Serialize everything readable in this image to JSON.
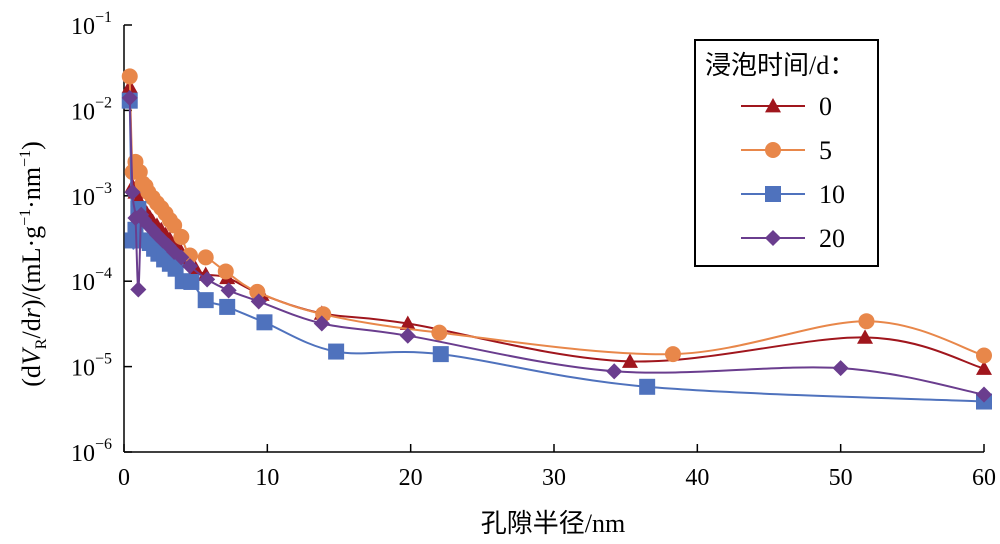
{
  "chart_data": {
    "type": "line",
    "xlabel": "孔隙半径/nm",
    "ylabel": "(dV_R/dr)/(mL·g⁻¹·nm⁻¹)",
    "xlim": [
      0,
      60
    ],
    "ylim": [
      1e-06,
      0.1
    ],
    "y_scale": "log",
    "grid": false,
    "legend_title": "浸泡时间/d：",
    "legend_position": "top-right",
    "x_ticks": [
      "0",
      "10",
      "20",
      "30",
      "40",
      "50",
      "60"
    ],
    "y_ticks": [
      {
        "base": "10",
        "exp": "−1"
      },
      {
        "base": "10",
        "exp": "−2"
      },
      {
        "base": "10",
        "exp": "−3"
      },
      {
        "base": "10",
        "exp": "−4"
      },
      {
        "base": "10",
        "exp": "−5"
      },
      {
        "base": "10",
        "exp": "−6"
      }
    ],
    "series": [
      {
        "name": "0",
        "color": "#a0161d",
        "marker": "triangle",
        "points": [
          [
            0.4,
            0.019
          ],
          [
            0.6,
            0.0013
          ],
          [
            0.8,
            0.0011
          ],
          [
            1.0,
            0.0009
          ],
          [
            1.2,
            0.0008
          ],
          [
            1.4,
            0.0007
          ],
          [
            1.6,
            0.00062
          ],
          [
            1.8,
            0.00056
          ],
          [
            2.0,
            0.0005
          ],
          [
            2.3,
            0.00045
          ],
          [
            2.6,
            0.0004
          ],
          [
            2.9,
            0.00035
          ],
          [
            3.2,
            0.00031
          ],
          [
            3.6,
            0.00027
          ],
          [
            4.0,
            0.00022
          ],
          [
            4.5,
            0.00017
          ],
          [
            5.0,
            0.00014
          ],
          [
            5.7,
            0.00012
          ],
          [
            7.2,
            0.00011
          ],
          [
            9.6,
            7e-05
          ],
          [
            13.8,
            4.2e-05
          ],
          [
            19.8,
            3.2e-05
          ],
          [
            35.3,
            1.15e-05
          ],
          [
            51.7,
            2.2e-05
          ],
          [
            60.0,
            9.5e-06
          ]
        ]
      },
      {
        "name": "5",
        "color": "#e8874a",
        "marker": "circle",
        "points": [
          [
            0.4,
            0.025
          ],
          [
            0.6,
            0.0019
          ],
          [
            0.8,
            0.0025
          ],
          [
            1.1,
            0.0019
          ],
          [
            1.3,
            0.0014
          ],
          [
            1.5,
            0.0013
          ],
          [
            1.7,
            0.0011
          ],
          [
            2.0,
            0.00095
          ],
          [
            2.3,
            0.00082
          ],
          [
            2.6,
            0.00072
          ],
          [
            2.9,
            0.00062
          ],
          [
            3.2,
            0.00052
          ],
          [
            3.5,
            0.00045
          ],
          [
            4.0,
            0.00033
          ],
          [
            4.6,
            0.0002
          ],
          [
            5.7,
            0.00019
          ],
          [
            7.1,
            0.00013
          ],
          [
            9.3,
            7.5e-05
          ],
          [
            13.9,
            4.1e-05
          ],
          [
            22.0,
            2.5e-05
          ],
          [
            38.3,
            1.4e-05
          ],
          [
            51.8,
            3.4e-05
          ],
          [
            60.0,
            1.35e-05
          ]
        ]
      },
      {
        "name": "10",
        "color": "#4f72bd",
        "marker": "square",
        "points": [
          [
            0.4,
            0.013
          ],
          [
            0.6,
            0.0003
          ],
          [
            0.8,
            0.0004
          ],
          [
            1.0,
            0.0007
          ],
          [
            1.2,
            0.0003
          ],
          [
            1.5,
            0.0003
          ],
          [
            1.8,
            0.00028
          ],
          [
            2.1,
            0.00024
          ],
          [
            2.4,
            0.00021
          ],
          [
            2.8,
            0.00018
          ],
          [
            3.2,
            0.00016
          ],
          [
            3.6,
            0.00014
          ],
          [
            4.1,
            0.0001
          ],
          [
            4.7,
            9.8e-05
          ],
          [
            5.7,
            6e-05
          ],
          [
            7.2,
            5e-05
          ],
          [
            9.8,
            3.3e-05
          ],
          [
            14.8,
            1.5e-05
          ],
          [
            22.1,
            1.4e-05
          ],
          [
            36.5,
            5.8e-06
          ],
          [
            60.0,
            3.9e-06
          ]
        ]
      },
      {
        "name": "20",
        "color": "#6a3d8e",
        "marker": "diamond",
        "points": [
          [
            0.4,
            0.014
          ],
          [
            0.6,
            0.0011
          ],
          [
            0.8,
            0.00055
          ],
          [
            1.0,
            8e-05
          ],
          [
            1.2,
            0.0006
          ],
          [
            1.4,
            0.00052
          ],
          [
            1.7,
            0.00045
          ],
          [
            2.0,
            0.0004
          ],
          [
            2.3,
            0.00035
          ],
          [
            2.7,
            0.0003
          ],
          [
            3.1,
            0.00026
          ],
          [
            3.5,
            0.00022
          ],
          [
            4.0,
            0.00019
          ],
          [
            4.6,
            0.00015
          ],
          [
            5.8,
            0.000105
          ],
          [
            7.3,
            7.8e-05
          ],
          [
            9.4,
            5.8e-05
          ],
          [
            13.8,
            3.2e-05
          ],
          [
            19.8,
            2.3e-05
          ],
          [
            34.2,
            8.8e-06
          ],
          [
            50.0,
            9.6e-06
          ],
          [
            60.0,
            4.7e-06
          ]
        ]
      }
    ]
  }
}
